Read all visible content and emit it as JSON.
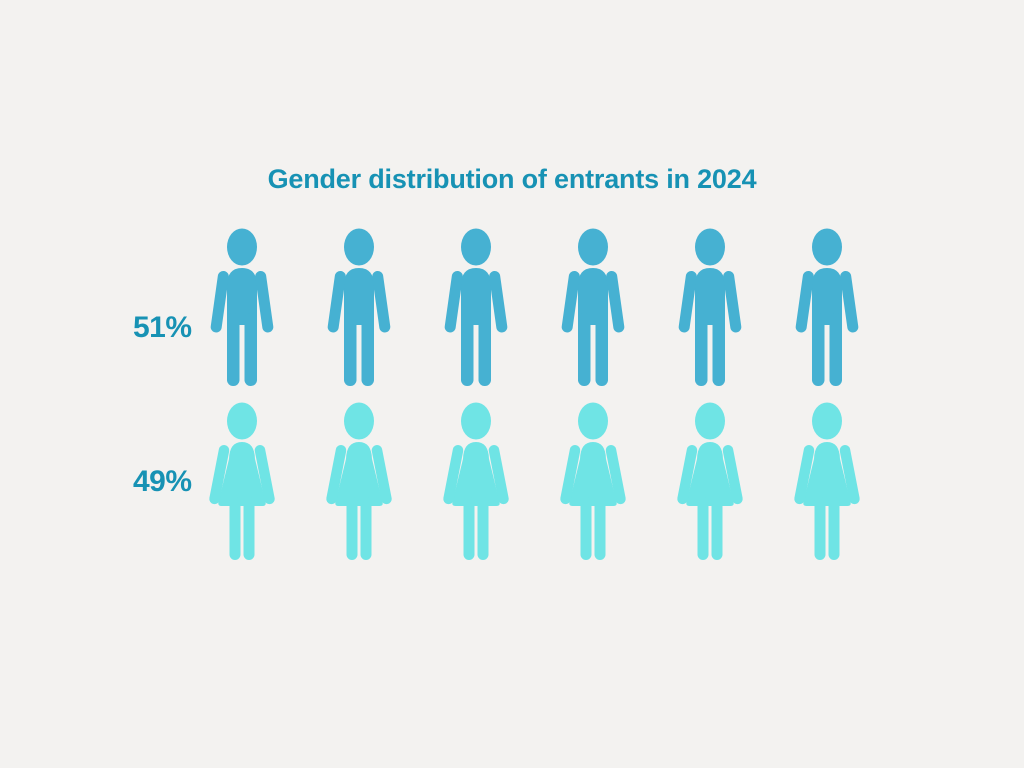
{
  "background_color": "#f3f2f0",
  "chart_data": {
    "type": "pictogram",
    "title": "Gender distribution of entrants in 2024",
    "title_color": "#1792b4",
    "label_color": "#1792b4",
    "categories": [
      "Male",
      "Female"
    ],
    "values": [
      51,
      49
    ],
    "unit": "%",
    "icons_per_row": 6,
    "legend_position": "none",
    "grid": false,
    "rows": [
      {
        "category": "Male",
        "label": "51%",
        "value": 51,
        "icon": "male-figure",
        "icon_count": 6,
        "color": "#46b1d2"
      },
      {
        "category": "Female",
        "label": "49%",
        "value": 49,
        "icon": "female-figure",
        "icon_count": 6,
        "color": "#6fe4e5"
      }
    ]
  }
}
